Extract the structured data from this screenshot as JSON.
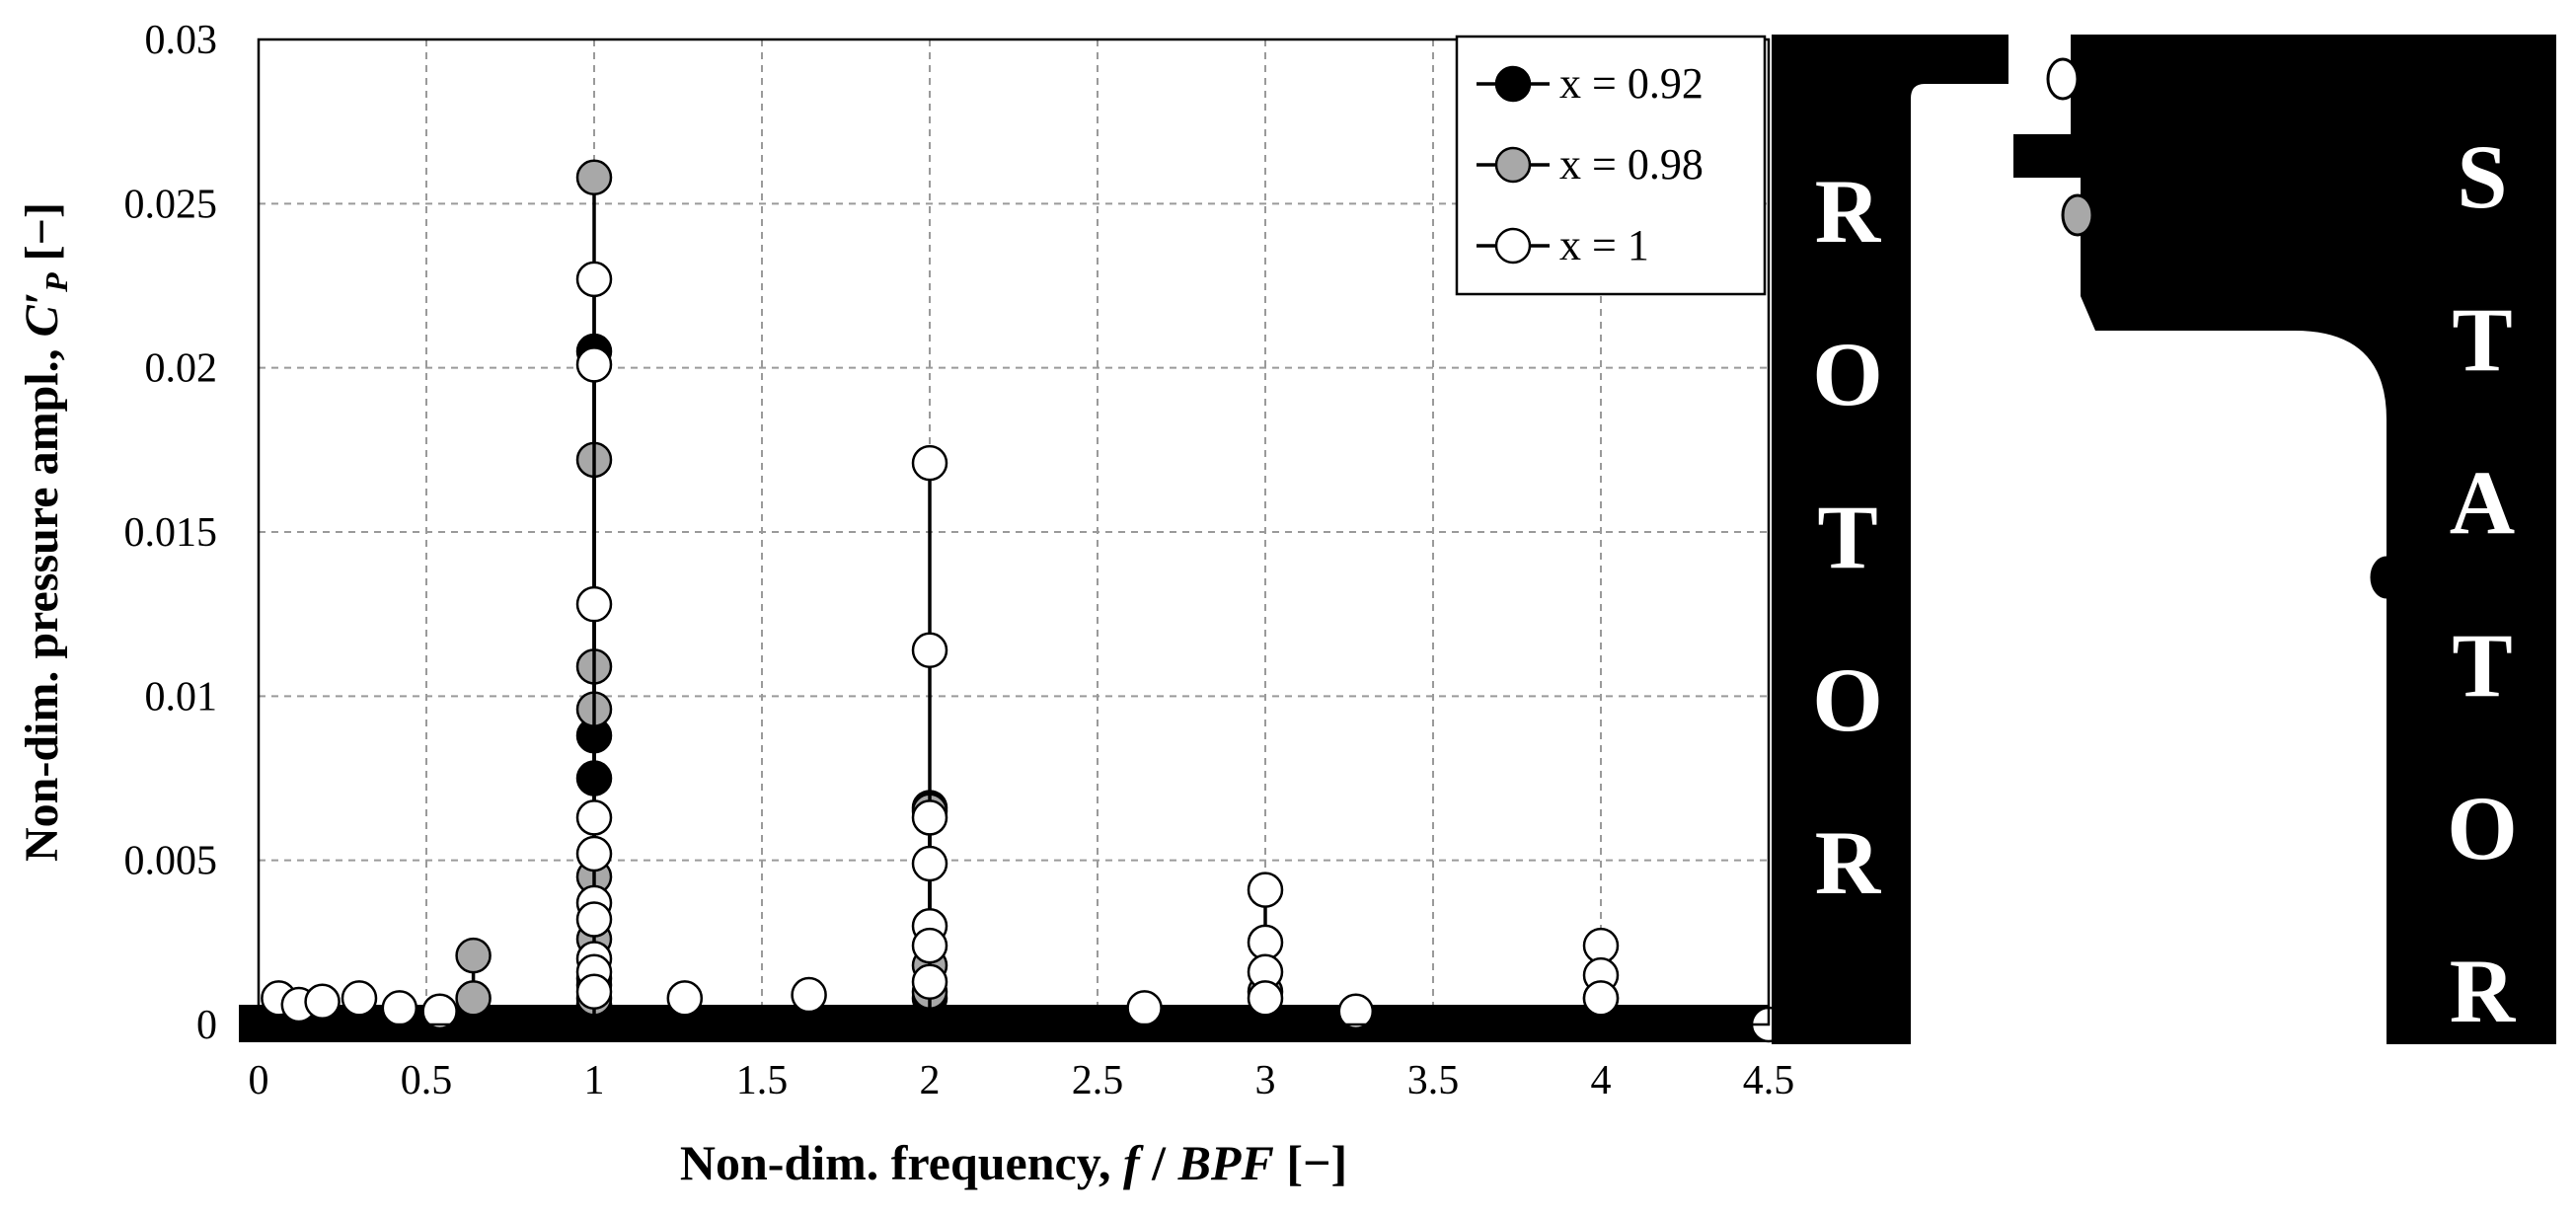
{
  "chart_data": {
    "type": "line",
    "xlabel": {
      "prefix": "Non-dim. frequency, ",
      "symbol_f": "f",
      "slash": " / ",
      "symbol_bpf": "BPF",
      "unit": " [−]"
    },
    "ylabel": {
      "prefix": "Non-dim. pressure ampl., ",
      "symbol": "C′",
      "subscript": "P",
      "unit": " [−]"
    },
    "xlim": [
      0,
      4.5
    ],
    "ylim": [
      0,
      0.03
    ],
    "xticks": [
      "0",
      "0.5",
      "1",
      "1.5",
      "2",
      "2.5",
      "3",
      "3.5",
      "4",
      "4.5"
    ],
    "yticks": [
      "0",
      "0.005",
      "0.01",
      "0.015",
      "0.02",
      "0.025",
      "0.03"
    ],
    "grid": true,
    "legend_position": "top-right",
    "series": [
      {
        "name": "x = 0.92",
        "fill": "#000000",
        "points": [
          [
            1.0,
            0.0205
          ],
          [
            1.0,
            0.0088
          ],
          [
            1.0,
            0.0075
          ],
          [
            1.0,
            0.0012
          ],
          [
            1.0,
            0.0006
          ],
          [
            2.0,
            0.0066
          ],
          [
            2.0,
            0.0008
          ],
          [
            3.0,
            0.0003
          ],
          [
            4.0,
            0.0003
          ],
          [
            0.64,
            0.0004
          ],
          [
            1.27,
            0.0003
          ],
          [
            1.64,
            0.0003
          ]
        ]
      },
      {
        "name": "x = 0.98",
        "fill": "#a8a8a8",
        "points": [
          [
            1.0,
            0.0258
          ],
          [
            1.0,
            0.0172
          ],
          [
            1.0,
            0.0109
          ],
          [
            1.0,
            0.0096
          ],
          [
            1.0,
            0.0045
          ],
          [
            1.0,
            0.0026
          ],
          [
            1.0,
            0.0014
          ],
          [
            1.0,
            0.0008
          ],
          [
            0.64,
            0.0021
          ],
          [
            0.64,
            0.0008
          ],
          [
            2.0,
            0.0065
          ],
          [
            2.0,
            0.0018
          ],
          [
            2.0,
            0.001
          ],
          [
            3.0,
            0.001
          ],
          [
            4.0,
            0.0008
          ]
        ]
      },
      {
        "name": "x = 1",
        "fill": "#ffffff",
        "points": [
          [
            1.0,
            0.0227
          ],
          [
            1.0,
            0.0201
          ],
          [
            1.0,
            0.0128
          ],
          [
            1.0,
            0.0063
          ],
          [
            1.0,
            0.0052
          ],
          [
            1.0,
            0.0037
          ],
          [
            1.0,
            0.0032
          ],
          [
            1.0,
            0.002
          ],
          [
            1.0,
            0.0016
          ],
          [
            1.0,
            0.001
          ],
          [
            2.0,
            0.0171
          ],
          [
            2.0,
            0.0114
          ],
          [
            2.0,
            0.0063
          ],
          [
            2.0,
            0.0049
          ],
          [
            2.0,
            0.003
          ],
          [
            2.0,
            0.0024
          ],
          [
            2.0,
            0.0013
          ],
          [
            3.0,
            0.0041
          ],
          [
            3.0,
            0.0025
          ],
          [
            3.0,
            0.0016
          ],
          [
            3.0,
            0.0008
          ],
          [
            4.0,
            0.0024
          ],
          [
            4.0,
            0.0015
          ],
          [
            4.0,
            0.0008
          ],
          [
            0.06,
            0.0008
          ],
          [
            0.12,
            0.0006
          ],
          [
            0.19,
            0.0007
          ],
          [
            0.3,
            0.0008
          ],
          [
            0.42,
            0.0005
          ],
          [
            0.54,
            0.0004
          ],
          [
            1.27,
            0.0008
          ],
          [
            1.64,
            0.0009
          ],
          [
            2.64,
            0.0005
          ],
          [
            3.27,
            0.0004
          ],
          [
            4.5,
            0.0
          ]
        ]
      }
    ]
  },
  "schematic": {
    "rotor_label": [
      "R",
      "O",
      "T",
      "O",
      "R"
    ],
    "stator_label": [
      "S",
      "T",
      "A",
      "T",
      "O",
      "R"
    ],
    "sensors": [
      {
        "series": "x = 1",
        "fill": "#ffffff"
      },
      {
        "series": "x = 0.98",
        "fill": "#a8a8a8"
      },
      {
        "series": "x = 0.92",
        "fill": "#000000"
      }
    ]
  }
}
